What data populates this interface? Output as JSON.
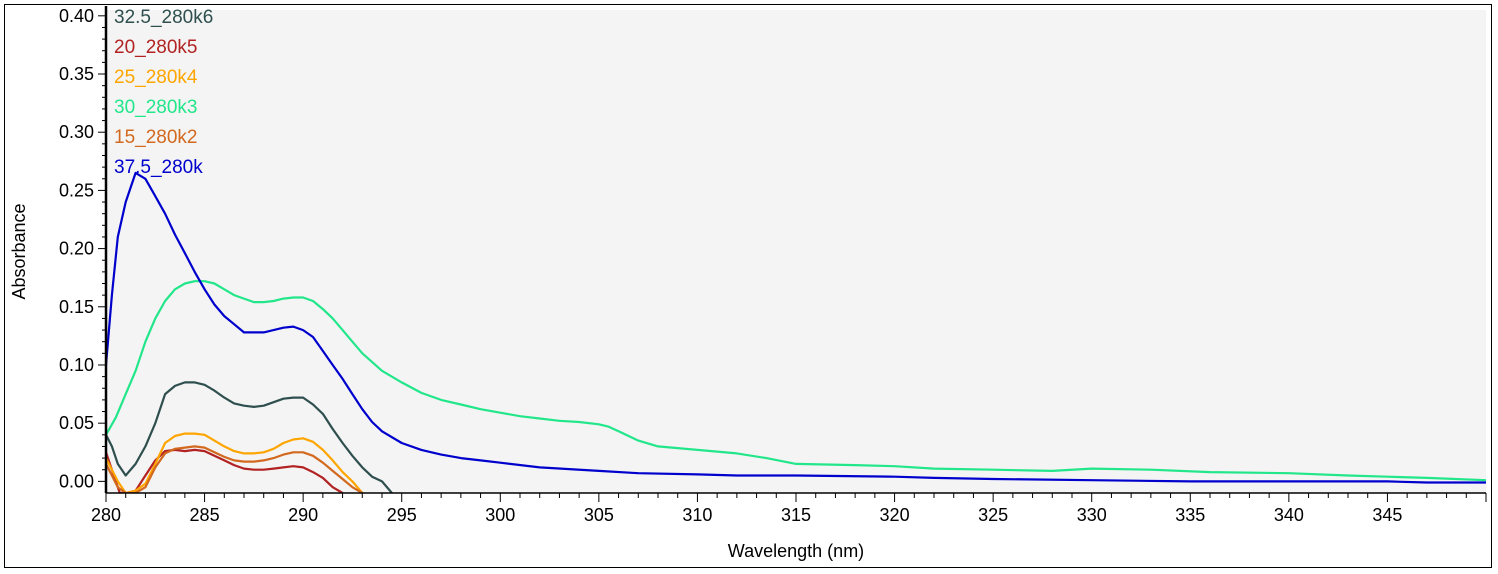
{
  "chart_data": {
    "type": "line",
    "title": "",
    "xlabel": "Wavelength (nm)",
    "ylabel": "Absorbance",
    "xlim": [
      280,
      350
    ],
    "ylim": [
      -0.01,
      0.405
    ],
    "grid": false,
    "legend_position": "top-left",
    "x_ticks": [
      280,
      285,
      290,
      295,
      300,
      305,
      310,
      315,
      320,
      325,
      330,
      335,
      340,
      345
    ],
    "x_tick_labels": [
      "280",
      "285",
      "290",
      "295",
      "300",
      "305",
      "310",
      "315",
      "320",
      "325",
      "330",
      "335",
      "340",
      "345"
    ],
    "y_ticks": [
      0.0,
      0.05,
      0.1,
      0.15,
      0.2,
      0.25,
      0.3,
      0.35,
      0.4
    ],
    "y_tick_labels": [
      "0.00",
      "0.05",
      "0.10",
      "0.15",
      "0.20",
      "0.25",
      "0.30",
      "0.35",
      "0.40"
    ],
    "plot_background": "#f4f4f4",
    "series": [
      {
        "name": "32.5_280k6",
        "color": "#2f4f4f",
        "x": [
          280.0,
          280.3,
          280.6,
          281.0,
          281.5,
          282.0,
          282.5,
          283.0,
          283.5,
          284.0,
          284.5,
          285.0,
          285.5,
          286.0,
          286.5,
          287.0,
          287.5,
          288.0,
          288.5,
          289.0,
          289.5,
          290.0,
          290.5,
          291.0,
          291.5,
          292.0,
          292.5,
          293.0,
          293.5,
          294.0,
          294.5
        ],
        "y": [
          0.04,
          0.03,
          0.015,
          0.005,
          0.015,
          0.03,
          0.05,
          0.075,
          0.082,
          0.085,
          0.085,
          0.083,
          0.078,
          0.072,
          0.067,
          0.065,
          0.064,
          0.065,
          0.068,
          0.071,
          0.072,
          0.072,
          0.066,
          0.058,
          0.045,
          0.033,
          0.022,
          0.012,
          0.004,
          0.0,
          -0.01
        ]
      },
      {
        "name": "20_280k5",
        "color": "#b22222",
        "x": [
          280.0,
          280.3,
          280.7,
          281.0,
          281.5,
          282.0,
          282.5,
          283.0,
          283.5,
          284.0,
          284.5,
          285.0,
          285.5,
          286.0,
          286.5,
          287.0,
          287.5,
          288.0,
          288.5,
          289.0,
          289.5,
          290.0,
          290.5,
          291.0,
          291.5,
          292.0
        ],
        "y": [
          0.025,
          0.01,
          -0.01,
          -0.01,
          -0.008,
          0.005,
          0.018,
          0.026,
          0.027,
          0.026,
          0.027,
          0.026,
          0.022,
          0.018,
          0.014,
          0.011,
          0.01,
          0.01,
          0.011,
          0.012,
          0.013,
          0.012,
          0.008,
          0.003,
          -0.005,
          -0.01
        ]
      },
      {
        "name": "25_280k4",
        "color": "#ffa500",
        "x": [
          280.0,
          280.3,
          280.6,
          281.0,
          281.5,
          282.0,
          282.5,
          283.0,
          283.5,
          284.0,
          284.5,
          285.0,
          285.5,
          286.0,
          286.5,
          287.0,
          287.5,
          288.0,
          288.5,
          289.0,
          289.5,
          290.0,
          290.5,
          291.0,
          291.5,
          292.0,
          292.5,
          293.0
        ],
        "y": [
          0.02,
          0.01,
          0.0,
          -0.01,
          -0.008,
          -0.002,
          0.015,
          0.033,
          0.039,
          0.041,
          0.041,
          0.04,
          0.035,
          0.03,
          0.026,
          0.024,
          0.024,
          0.025,
          0.028,
          0.033,
          0.036,
          0.037,
          0.034,
          0.027,
          0.018,
          0.008,
          0.0,
          -0.01
        ]
      },
      {
        "name": "30_280k3",
        "color": "#22e68a",
        "x": [
          280.0,
          280.5,
          281.0,
          281.5,
          282.0,
          282.5,
          283.0,
          283.5,
          284.0,
          284.5,
          285.0,
          285.5,
          286.0,
          286.5,
          287.0,
          287.5,
          288.0,
          288.5,
          289.0,
          289.5,
          290.0,
          290.5,
          291.0,
          291.5,
          292.0,
          292.5,
          293.0,
          294.0,
          295.0,
          296.0,
          297.0,
          298.0,
          299.0,
          300.0,
          301.0,
          302.0,
          303.0,
          304.0,
          305.0,
          305.5,
          306.0,
          307.0,
          308.0,
          310.0,
          312.0,
          313.5,
          315.0,
          318.0,
          320.0,
          322.0,
          325.0,
          328.0,
          330.0,
          333.0,
          336.0,
          340.0,
          343.0,
          345.0,
          347.0,
          350.0
        ],
        "y": [
          0.04,
          0.055,
          0.075,
          0.095,
          0.12,
          0.14,
          0.155,
          0.165,
          0.17,
          0.172,
          0.172,
          0.17,
          0.165,
          0.16,
          0.157,
          0.154,
          0.154,
          0.155,
          0.157,
          0.158,
          0.158,
          0.155,
          0.148,
          0.14,
          0.13,
          0.12,
          0.11,
          0.095,
          0.085,
          0.076,
          0.07,
          0.066,
          0.062,
          0.059,
          0.056,
          0.054,
          0.052,
          0.051,
          0.049,
          0.047,
          0.043,
          0.035,
          0.03,
          0.027,
          0.024,
          0.02,
          0.015,
          0.014,
          0.013,
          0.011,
          0.01,
          0.009,
          0.011,
          0.01,
          0.008,
          0.007,
          0.005,
          0.004,
          0.003,
          0.001
        ]
      },
      {
        "name": "15_280k2",
        "color": "#d2691e",
        "x": [
          280.0,
          280.3,
          280.6,
          281.0,
          281.5,
          282.0,
          282.5,
          283.0,
          283.5,
          284.0,
          284.5,
          285.0,
          285.5,
          286.0,
          286.5,
          287.0,
          287.5,
          288.0,
          288.5,
          289.0,
          289.5,
          290.0,
          290.5,
          291.0,
          291.5,
          292.0,
          292.5,
          293.0
        ],
        "y": [
          0.015,
          0.005,
          -0.005,
          -0.01,
          -0.01,
          -0.005,
          0.012,
          0.024,
          0.028,
          0.029,
          0.03,
          0.029,
          0.025,
          0.021,
          0.018,
          0.017,
          0.017,
          0.018,
          0.02,
          0.023,
          0.025,
          0.025,
          0.022,
          0.016,
          0.009,
          0.002,
          -0.005,
          -0.01
        ]
      },
      {
        "name": "37.5_280k",
        "color": "#0000cd",
        "x": [
          280.0,
          280.3,
          280.6,
          281.0,
          281.5,
          282.0,
          282.5,
          283.0,
          283.5,
          284.0,
          284.5,
          285.0,
          285.5,
          286.0,
          286.5,
          287.0,
          287.5,
          288.0,
          288.5,
          289.0,
          289.5,
          290.0,
          290.5,
          291.0,
          291.5,
          292.0,
          292.5,
          293.0,
          293.5,
          294.0,
          295.0,
          296.0,
          297.0,
          298.0,
          299.0,
          300.0,
          302.0,
          305.0,
          307.0,
          310.0,
          312.0,
          315.0,
          320.0,
          322.0,
          325.0,
          330.0,
          335.0,
          340.0,
          345.0,
          347.0,
          350.0
        ],
        "y": [
          0.1,
          0.16,
          0.21,
          0.24,
          0.265,
          0.26,
          0.245,
          0.23,
          0.212,
          0.196,
          0.18,
          0.165,
          0.152,
          0.142,
          0.135,
          0.128,
          0.128,
          0.128,
          0.13,
          0.132,
          0.133,
          0.13,
          0.124,
          0.112,
          0.1,
          0.088,
          0.075,
          0.062,
          0.051,
          0.043,
          0.033,
          0.027,
          0.023,
          0.02,
          0.018,
          0.016,
          0.012,
          0.009,
          0.007,
          0.006,
          0.005,
          0.005,
          0.004,
          0.003,
          0.002,
          0.001,
          0.0,
          0.0,
          0.0,
          -0.001,
          -0.001
        ]
      }
    ]
  }
}
